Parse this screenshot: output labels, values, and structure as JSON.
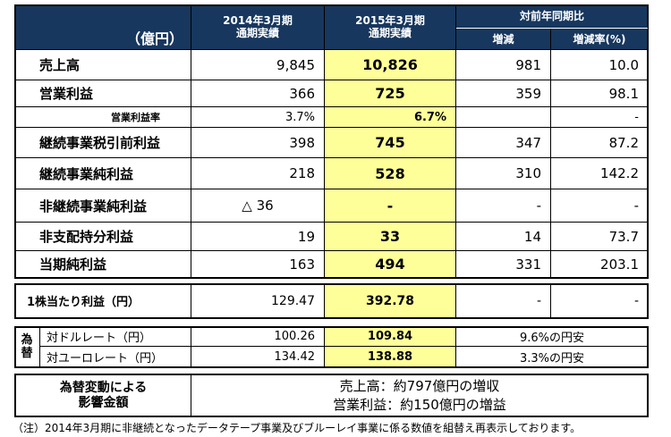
{
  "header": {
    "unit": "（億円）",
    "col1_line1": "2014年3月期",
    "col1_line2": "通期実績",
    "col2_line1": "2015年3月期",
    "col2_line2": "通期実績",
    "yoy": "対前年同期比",
    "change": "増減",
    "change_rate": "増減率(%)"
  },
  "rows": [
    {
      "label": "売上高",
      "prev": "9,845",
      "curr": "10,826",
      "diff": "981",
      "rate": "10.0"
    },
    {
      "label": "営業利益",
      "prev": "366",
      "curr": "725",
      "diff": "359",
      "rate": "98.1"
    },
    {
      "label": "営業利益率",
      "prev": "3.7%",
      "curr": "6.7%",
      "diff": "",
      "rate": "-"
    },
    {
      "label": "継続事業税引前利益",
      "prev": "398",
      "curr": "745",
      "diff": "347",
      "rate": "87.2"
    },
    {
      "label": "継続事業純利益",
      "prev": "218",
      "curr": "528",
      "diff": "310",
      "rate": "142.2"
    },
    {
      "label": "非継続事業純利益",
      "prev": "△ 36",
      "curr": "-",
      "diff": "-",
      "rate": "-"
    },
    {
      "label": "非支配持分利益",
      "prev": "19",
      "curr": "33",
      "diff": "14",
      "rate": "73.7"
    },
    {
      "label": "当期純利益",
      "prev": "163",
      "curr": "494",
      "diff": "331",
      "rate": "203.1"
    }
  ],
  "eps": {
    "label": "1株当たり利益（円）",
    "prev": "129.47",
    "curr": "392.78",
    "diff": "-",
    "rate": "-"
  },
  "fx": {
    "group_label_1": "為",
    "group_label_2": "替",
    "usd": {
      "label": "対ドルレート（円）",
      "prev": "100.26",
      "curr": "109.84",
      "note": "9.6%の円安"
    },
    "eur": {
      "label": "対ユーロレート（円）",
      "prev": "134.42",
      "curr": "138.88",
      "note": "3.3%の円安"
    }
  },
  "fx_impact": {
    "label_line1": "為替変動による",
    "label_line2": "影響金額",
    "sales": "売上高：約797億円の増収",
    "op": "営業利益：約150億円の増益"
  },
  "footnote": "（注）2014年3月期に非継続となったデータテープ事業及びブルーレイ事業に係る数値を組替え再表示しております。"
}
